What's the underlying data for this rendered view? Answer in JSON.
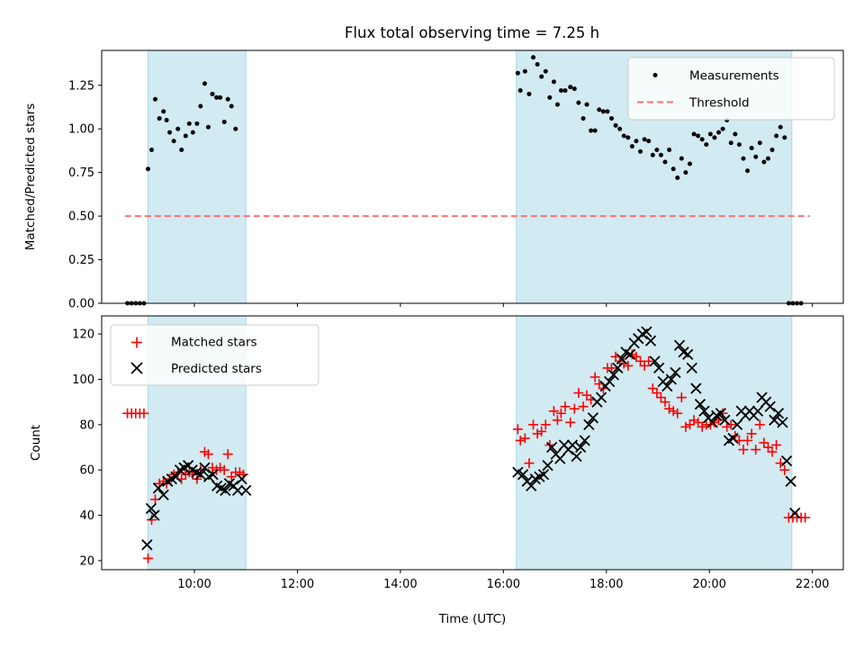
{
  "chart_data": {
    "title": "Flux total observing time = 7.25 h",
    "type": "scatter",
    "xlabel": "Time (UTC)",
    "x_ticks": [
      "10:00",
      "12:00",
      "14:00",
      "16:00",
      "18:00",
      "20:00",
      "22:00"
    ],
    "x_tick_hours": [
      10,
      12,
      14,
      16,
      18,
      20,
      22
    ],
    "xlim_hours": [
      8.2,
      22.6
    ],
    "shaded_intervals_hours": [
      [
        9.1,
        11.0
      ],
      [
        16.25,
        21.6
      ]
    ],
    "colors": {
      "shade": "#add8e6",
      "matched": "#ff0000",
      "predicted": "#000000",
      "threshold": "#ff7070"
    },
    "panels": [
      {
        "ylabel": "Matched/Predicted stars",
        "ylim": [
          0,
          1.45
        ],
        "y_ticks": [
          "0.00",
          "0.25",
          "0.50",
          "0.75",
          "1.00",
          "1.25"
        ],
        "y_tick_values": [
          0,
          0.25,
          0.5,
          0.75,
          1.0,
          1.25
        ],
        "legend": [
          "Measurements",
          "Threshold"
        ],
        "threshold": {
          "value": 0.5,
          "x_range": [
            8.65,
            21.95
          ]
        },
        "measurements_x": [
          8.7,
          8.78,
          8.86,
          8.94,
          9.02,
          9.1,
          9.17,
          9.24,
          9.32,
          9.4,
          9.46,
          9.52,
          9.6,
          9.68,
          9.75,
          9.83,
          9.9,
          9.97,
          10.05,
          10.12,
          10.2,
          10.27,
          10.35,
          10.43,
          10.5,
          10.58,
          10.65,
          10.72,
          10.8,
          10.88,
          10.95,
          16.28,
          16.33,
          16.42,
          16.5,
          16.58,
          16.66,
          16.74,
          16.82,
          16.9,
          16.98,
          17.05,
          17.12,
          17.2,
          17.3,
          17.38,
          17.46,
          17.55,
          17.62,
          17.7,
          17.78,
          17.86,
          17.94,
          18.02,
          18.1,
          18.18,
          18.26,
          18.34,
          18.42,
          18.5,
          18.58,
          18.66,
          18.74,
          18.82,
          18.9,
          18.98,
          19.06,
          19.14,
          19.22,
          19.3,
          19.38,
          19.46,
          19.54,
          19.62,
          19.7,
          19.78,
          19.86,
          19.94,
          20.02,
          20.1,
          20.18,
          20.26,
          20.34,
          20.42,
          20.5,
          20.58,
          20.66,
          20.74,
          20.82,
          20.9,
          20.98,
          21.06,
          21.14,
          21.22,
          21.3,
          21.38,
          21.46,
          21.54,
          21.62,
          21.7,
          21.78,
          21.86,
          21.94
        ],
        "measurements_y": [
          0,
          0,
          0,
          0,
          0,
          0.77,
          0.88,
          1.17,
          1.06,
          1.1,
          1.05,
          0.98,
          0.93,
          1.0,
          0.88,
          0.96,
          1.03,
          0.98,
          1.03,
          1.13,
          1.26,
          1.01,
          1.2,
          1.18,
          1.18,
          1.04,
          1.17,
          1.13,
          1.0,
          null,
          null,
          1.32,
          1.22,
          1.33,
          1.2,
          1.41,
          1.37,
          1.3,
          1.33,
          1.18,
          1.27,
          1.14,
          1.22,
          1.22,
          1.24,
          1.23,
          1.15,
          1.06,
          1.14,
          0.99,
          0.99,
          1.11,
          1.1,
          1.1,
          1.06,
          1.02,
          1.0,
          0.96,
          0.95,
          0.9,
          0.93,
          0.87,
          0.94,
          0.93,
          0.85,
          0.88,
          0.85,
          0.81,
          0.88,
          0.77,
          0.72,
          0.83,
          0.75,
          0.8,
          0.97,
          0.96,
          0.94,
          0.91,
          0.97,
          0.95,
          0.98,
          1.0,
          1.05,
          0.92,
          0.97,
          0.91,
          0.83,
          0.76,
          0.89,
          0.84,
          0.92,
          0.81,
          0.83,
          0.88,
          0.96,
          1.01,
          0.95,
          0,
          0,
          0,
          0,
          null,
          null
        ]
      },
      {
        "ylabel": "Count",
        "ylim": [
          16,
          128
        ],
        "y_ticks": [
          "20",
          "40",
          "60",
          "80",
          "100",
          "120"
        ],
        "y_tick_values": [
          20,
          40,
          60,
          80,
          100,
          120
        ],
        "legend": [
          "Matched stars",
          "Predicted stars"
        ],
        "matched_x": [
          8.7,
          8.78,
          8.86,
          8.94,
          9.02,
          9.1,
          9.17,
          9.24,
          9.32,
          9.4,
          9.46,
          9.52,
          9.6,
          9.68,
          9.75,
          9.83,
          9.9,
          9.97,
          10.05,
          10.12,
          10.2,
          10.27,
          10.35,
          10.43,
          10.5,
          10.58,
          10.65,
          10.72,
          10.8,
          10.88,
          10.95,
          16.28,
          16.33,
          16.42,
          16.5,
          16.58,
          16.66,
          16.74,
          16.82,
          16.9,
          16.98,
          17.05,
          17.12,
          17.2,
          17.3,
          17.38,
          17.46,
          17.55,
          17.62,
          17.7,
          17.78,
          17.86,
          17.94,
          18.02,
          18.1,
          18.18,
          18.26,
          18.34,
          18.42,
          18.5,
          18.58,
          18.66,
          18.74,
          18.82,
          18.9,
          18.98,
          19.06,
          19.14,
          19.22,
          19.3,
          19.38,
          19.46,
          19.54,
          19.62,
          19.7,
          19.78,
          19.86,
          19.94,
          20.02,
          20.1,
          20.18,
          20.26,
          20.34,
          20.42,
          20.5,
          20.58,
          20.66,
          20.74,
          20.82,
          20.9,
          20.98,
          21.06,
          21.14,
          21.22,
          21.3,
          21.38,
          21.46,
          21.54,
          21.62,
          21.7,
          21.78,
          21.86,
          21.94
        ],
        "matched_y": [
          85,
          85,
          85,
          85,
          85,
          21,
          38,
          47,
          54,
          55,
          54,
          56,
          58,
          59,
          56,
          58,
          59,
          58,
          56,
          60,
          68,
          67,
          61,
          60,
          61,
          60,
          67,
          57,
          59,
          59,
          58,
          78,
          73,
          74,
          63,
          80,
          76,
          77,
          80,
          71,
          86,
          82,
          85,
          88,
          81,
          87,
          94,
          88,
          93,
          91,
          101,
          98,
          96,
          105,
          105,
          110,
          108,
          107,
          106,
          111,
          110,
          108,
          106,
          108,
          96,
          94,
          92,
          90,
          87,
          86,
          85,
          92,
          79,
          80,
          82,
          81,
          79,
          80,
          80,
          81,
          82,
          85,
          79,
          80,
          75,
          73,
          69,
          73,
          76,
          69,
          80,
          72,
          70,
          68,
          71,
          63,
          60,
          39,
          39,
          39,
          39,
          39,
          null
        ],
        "predicted_x": [
          9.08,
          9.16,
          9.22,
          9.3,
          9.4,
          9.48,
          9.56,
          9.64,
          9.72,
          9.8,
          9.88,
          9.96,
          10.04,
          10.12,
          10.2,
          10.28,
          10.36,
          10.44,
          10.52,
          10.6,
          10.68,
          10.76,
          10.84,
          10.92,
          11.0,
          16.28,
          16.38,
          16.46,
          16.54,
          16.62,
          16.7,
          16.78,
          16.86,
          16.94,
          17.02,
          17.1,
          17.18,
          17.26,
          17.34,
          17.42,
          17.5,
          17.58,
          17.66,
          17.74,
          17.82,
          17.9,
          17.98,
          18.06,
          18.14,
          18.22,
          18.3,
          18.38,
          18.46,
          18.54,
          18.62,
          18.7,
          18.78,
          18.86,
          18.94,
          19.02,
          19.1,
          19.18,
          19.26,
          19.34,
          19.42,
          19.5,
          19.58,
          19.66,
          19.74,
          19.82,
          19.9,
          19.98,
          20.06,
          20.14,
          20.22,
          20.3,
          20.38,
          20.46,
          20.54,
          20.62,
          20.7,
          20.78,
          20.86,
          20.94,
          21.02,
          21.1,
          21.18,
          21.26,
          21.34,
          21.42,
          21.5,
          21.58,
          21.66
        ],
        "predicted_y": [
          27,
          43,
          40,
          52,
          49,
          55,
          56,
          57,
          60,
          61,
          62,
          60,
          59,
          58,
          61,
          57,
          58,
          53,
          52,
          51,
          54,
          53,
          51,
          56,
          51,
          59,
          58,
          55,
          53,
          56,
          57,
          58,
          62,
          70,
          67,
          65,
          71,
          69,
          71,
          66,
          70,
          73,
          80,
          83,
          90,
          92,
          97,
          99,
          102,
          105,
          109,
          112,
          111,
          116,
          118,
          120,
          121,
          117,
          108,
          105,
          99,
          97,
          100,
          103,
          115,
          112,
          111,
          105,
          96,
          89,
          86,
          83,
          81,
          84,
          85,
          82,
          73,
          74,
          80,
          86,
          84,
          86,
          84,
          86,
          92,
          90,
          88,
          82,
          85,
          81,
          64,
          55,
          41
        ]
      }
    ]
  }
}
